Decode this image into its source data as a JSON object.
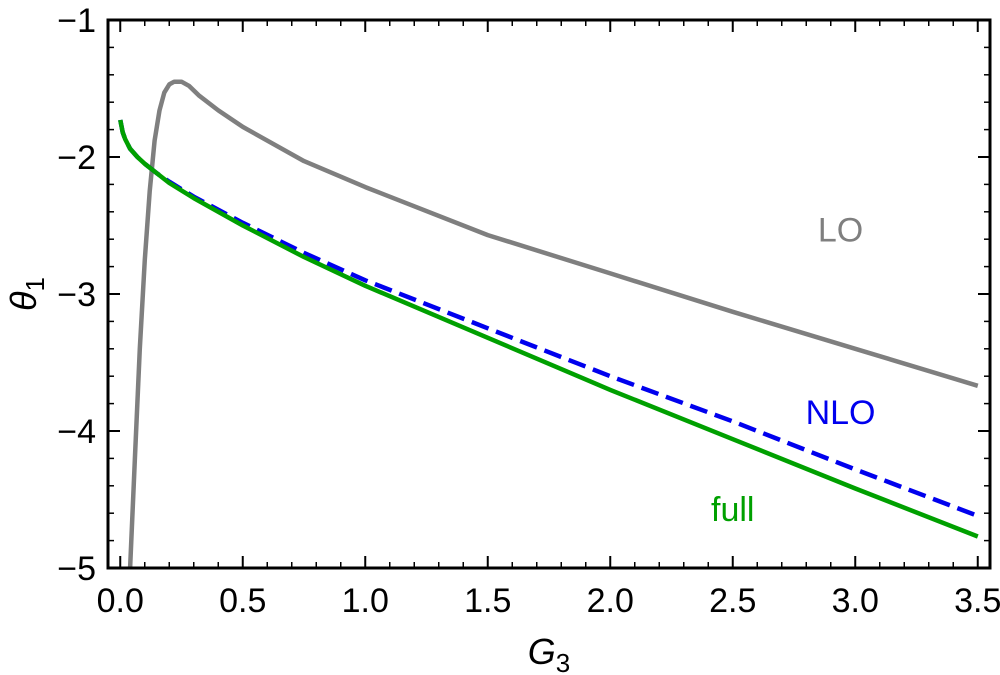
{
  "chart_data": {
    "type": "line",
    "title": "",
    "xlabel": {
      "main": "G",
      "sub": "3"
    },
    "ylabel": {
      "main": "θ",
      "sub": "1"
    },
    "xlim": [
      -0.05,
      3.55
    ],
    "ylim": [
      -5,
      -1
    ],
    "xticks": [
      0.0,
      0.5,
      1.0,
      1.5,
      2.0,
      2.5,
      3.0,
      3.5
    ],
    "xtick_labels": [
      "0.0",
      "0.5",
      "1.0",
      "1.5",
      "2.0",
      "2.5",
      "3.0",
      "3.5"
    ],
    "yticks": [
      -5,
      -4,
      -3,
      -2,
      -1
    ],
    "ytick_labels": [
      "−5",
      "−4",
      "−3",
      "−2",
      "−1"
    ],
    "grid": false,
    "frame_ticks": "all-sides",
    "series": [
      {
        "name": "LO",
        "color": "#7f7f7f",
        "style": "solid",
        "x": [
          0.04,
          0.06,
          0.08,
          0.1,
          0.12,
          0.14,
          0.16,
          0.18,
          0.2,
          0.22,
          0.25,
          0.28,
          0.32,
          0.4,
          0.5,
          0.75,
          1.0,
          1.5,
          2.0,
          2.5,
          3.0,
          3.5
        ],
        "y": [
          -5.0,
          -4.2,
          -3.4,
          -2.75,
          -2.25,
          -1.88,
          -1.66,
          -1.53,
          -1.47,
          -1.45,
          -1.45,
          -1.48,
          -1.55,
          -1.66,
          -1.78,
          -2.03,
          -2.22,
          -2.57,
          -2.85,
          -3.13,
          -3.4,
          -3.67
        ]
      },
      {
        "name": "NLO",
        "color": "#0000ee",
        "style": "dashed",
        "x": [
          0.0,
          0.01,
          0.02,
          0.04,
          0.07,
          0.1,
          0.15,
          0.2,
          0.3,
          0.5,
          0.75,
          1.0,
          1.5,
          2.0,
          2.5,
          3.0,
          3.5
        ],
        "y": [
          -1.73,
          -1.82,
          -1.87,
          -1.94,
          -2.0,
          -2.05,
          -2.12,
          -2.18,
          -2.29,
          -2.48,
          -2.7,
          -2.9,
          -3.25,
          -3.6,
          -3.93,
          -4.28,
          -4.62
        ]
      },
      {
        "name": "full",
        "color": "#00a000",
        "style": "solid",
        "x": [
          0.0,
          0.01,
          0.02,
          0.04,
          0.07,
          0.1,
          0.15,
          0.2,
          0.3,
          0.5,
          0.75,
          1.0,
          1.5,
          2.0,
          2.5,
          3.0,
          3.5
        ],
        "y": [
          -1.73,
          -1.82,
          -1.87,
          -1.94,
          -2.0,
          -2.05,
          -2.12,
          -2.19,
          -2.3,
          -2.5,
          -2.73,
          -2.94,
          -3.32,
          -3.7,
          -4.06,
          -4.42,
          -4.77
        ]
      }
    ],
    "annotations": [
      {
        "text": "LO",
        "x": 2.94,
        "y": -2.53,
        "color": "#7f7f7f"
      },
      {
        "text": "NLO",
        "x": 2.94,
        "y": -3.86,
        "color": "#0000ee"
      },
      {
        "text": "full",
        "x": 2.5,
        "y": -4.57,
        "color": "#00a000"
      }
    ]
  }
}
